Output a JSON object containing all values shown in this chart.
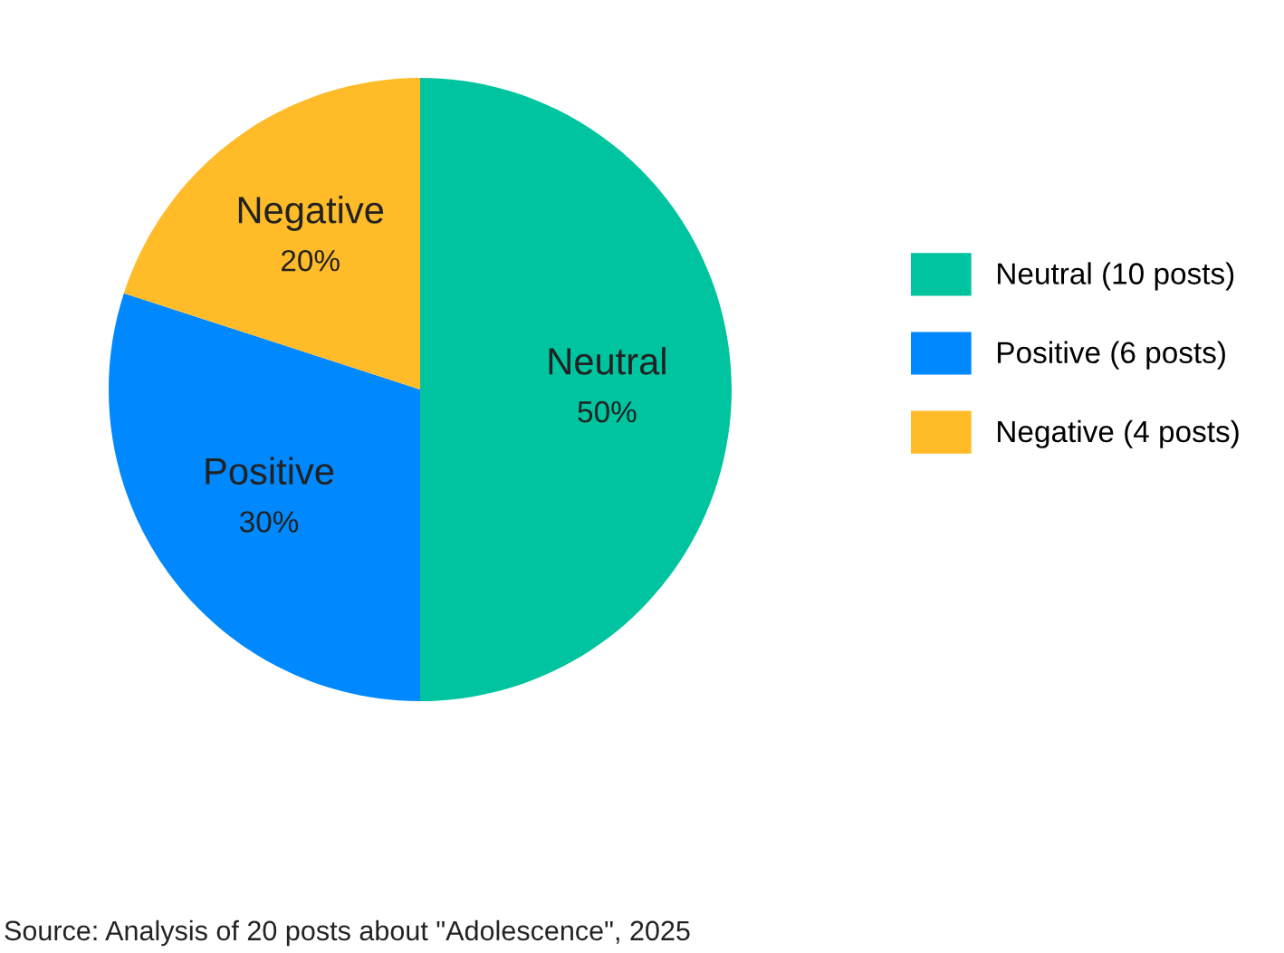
{
  "chart_data": {
    "type": "pie",
    "categories": [
      "Neutral (10 posts)",
      "Positive (6 posts)",
      "Negative (4 posts)"
    ],
    "values": [
      50,
      30,
      20
    ],
    "value_labels": [
      "50%",
      "30%",
      "20%"
    ],
    "colors": [
      "#00c49f",
      "#0088fe",
      "#ffbb28"
    ],
    "legend": "right",
    "annotations": [
      "Neutral",
      "Positive",
      "Negative",
      "Source: Analysis of 20 posts about \"Adolescence\", 2025"
    ]
  }
}
